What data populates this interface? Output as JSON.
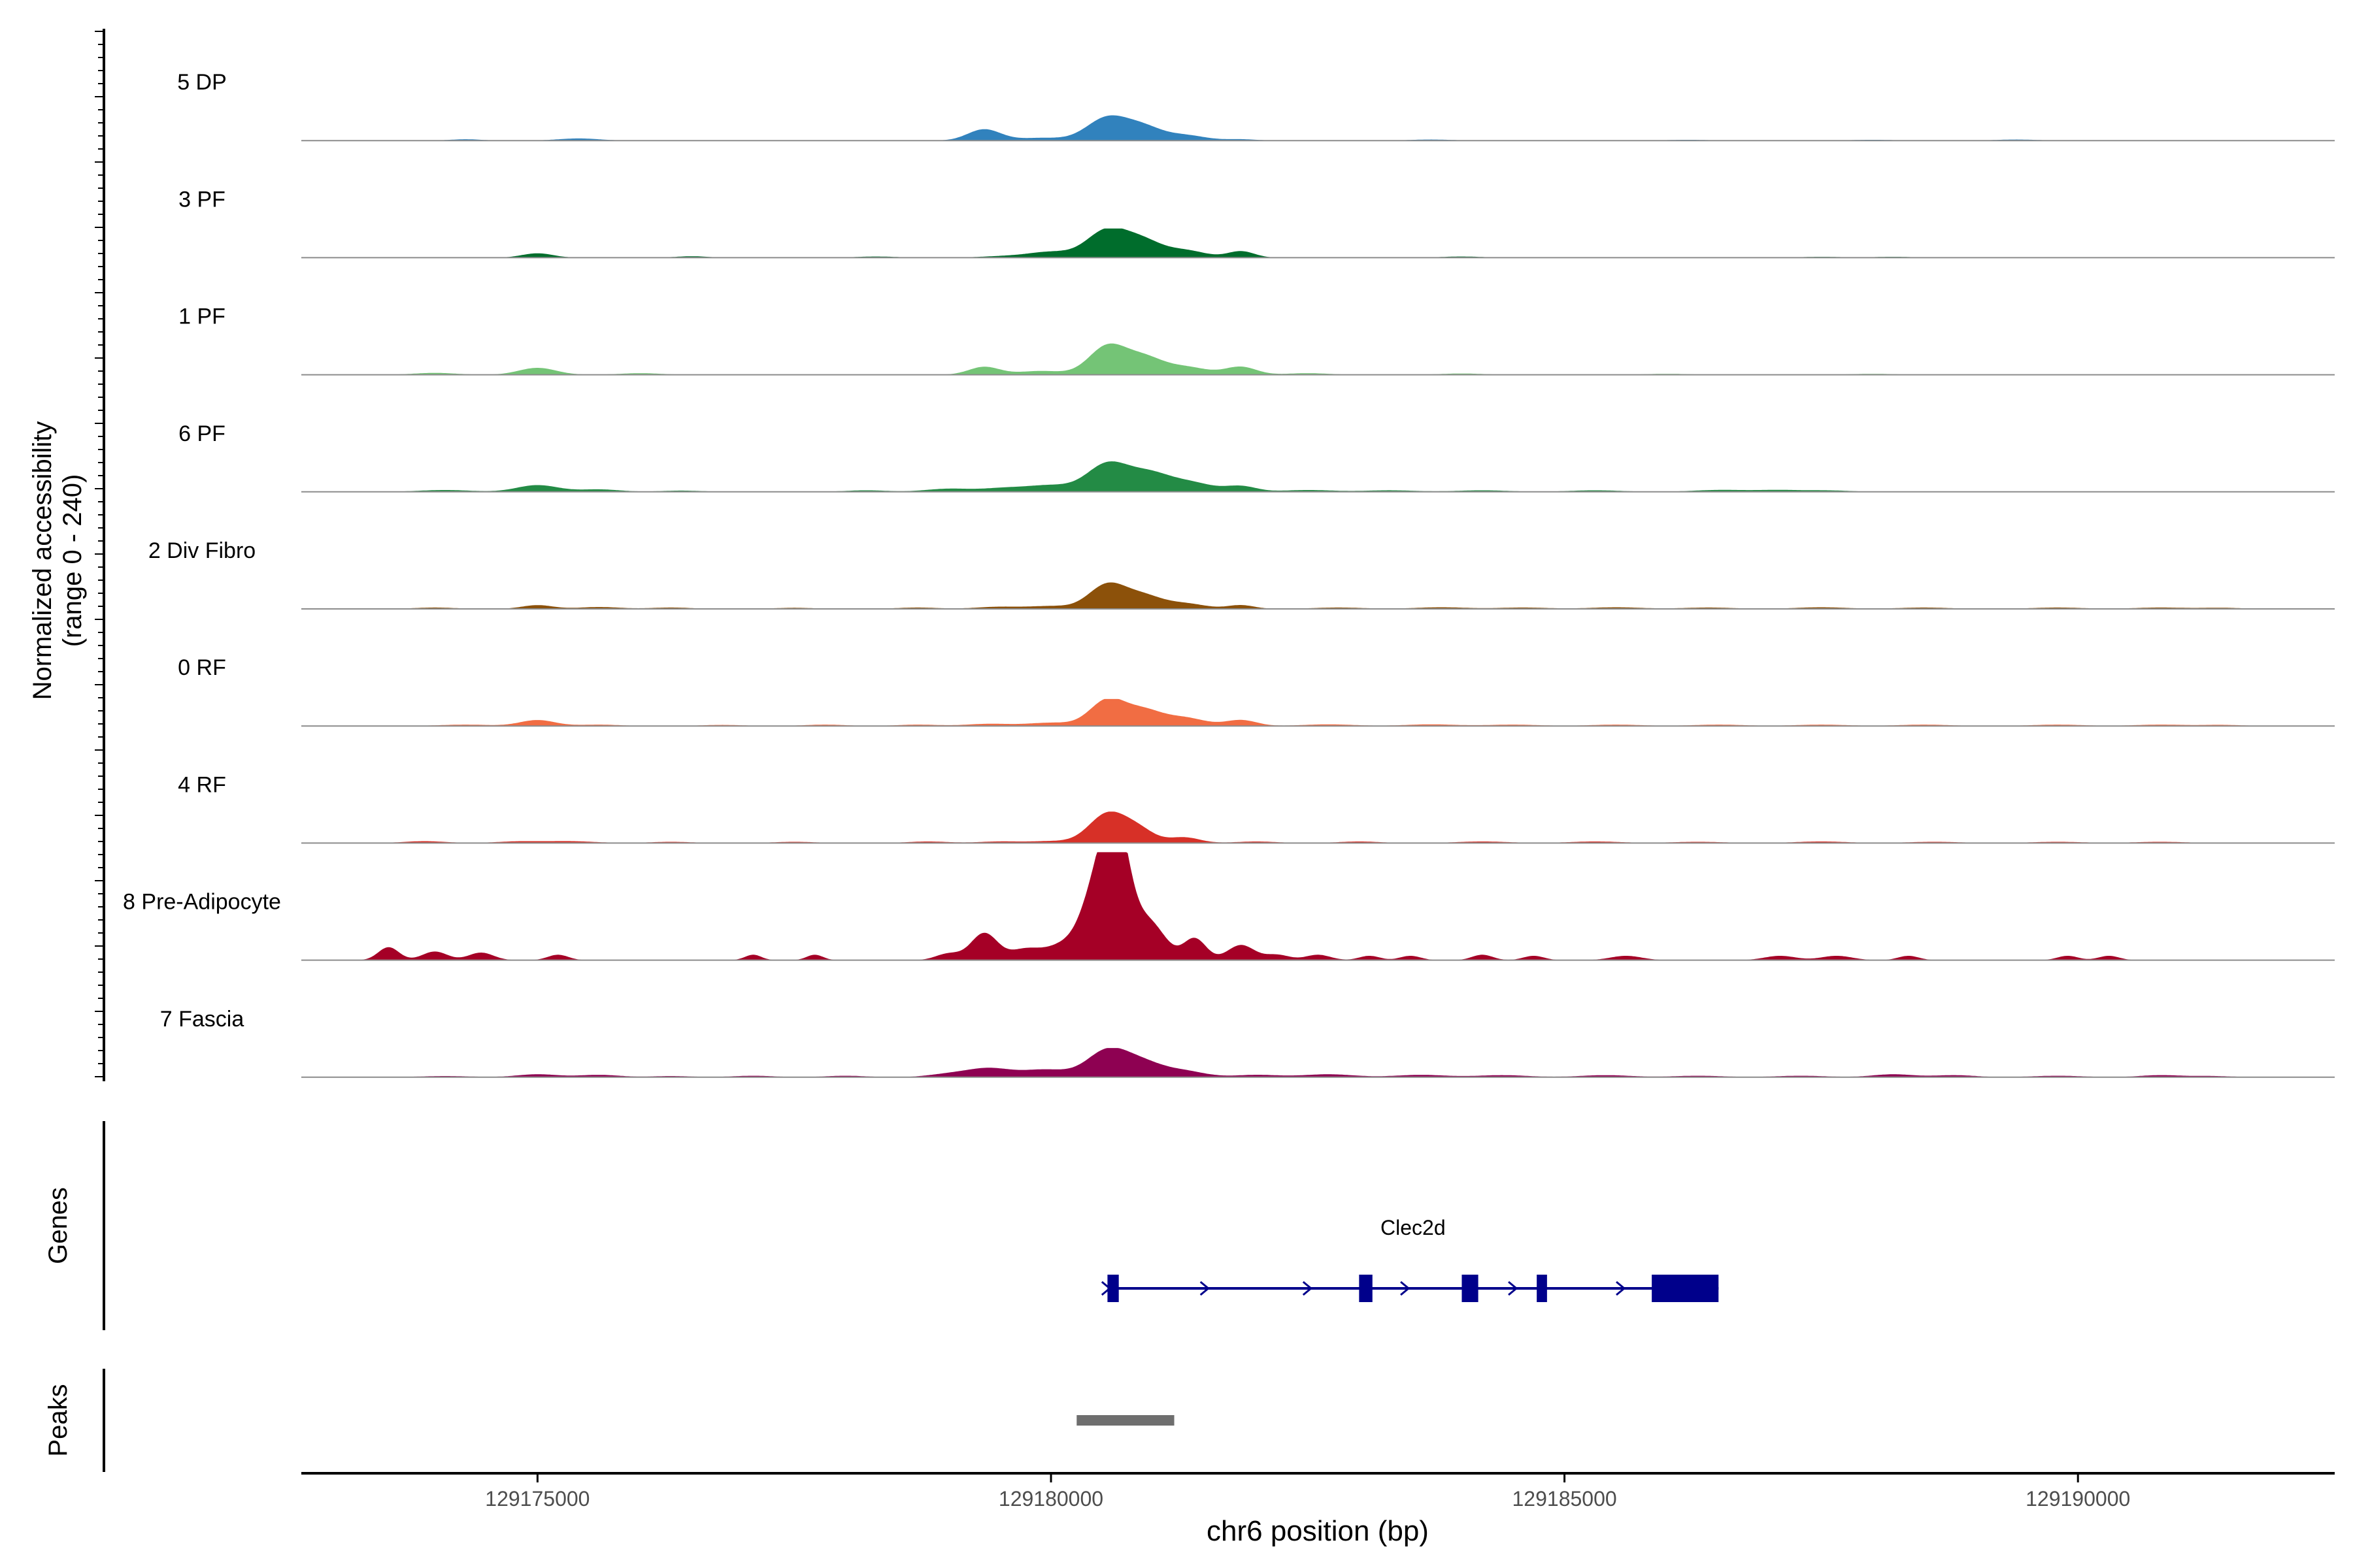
{
  "chart_data": {
    "type": "area",
    "tracks": {
      "ylabel_line1": "Normalized accessibility",
      "ylabel_line2": "(range 0 - 240)",
      "ylim": [
        0,
        240
      ],
      "x_range": [
        129172700,
        129192500
      ],
      "series": [
        {
          "name": "5 DP",
          "color": "#3182bd",
          "max": 60,
          "peaks": [
            [
              129174300,
              0.05,
              150
            ],
            [
              129175400,
              0.08,
              200
            ],
            [
              129179350,
              0.42,
              160
            ],
            [
              129179900,
              0.1,
              220
            ],
            [
              129180550,
              0.85,
              200
            ],
            [
              129180900,
              0.45,
              180
            ],
            [
              129181300,
              0.2,
              200
            ],
            [
              129181850,
              0.05,
              150
            ],
            [
              129183700,
              0.04,
              200
            ],
            [
              129186200,
              0.03,
              200
            ],
            [
              129188000,
              0.03,
              200
            ],
            [
              129189400,
              0.04,
              200
            ]
          ]
        },
        {
          "name": "3 PF",
          "color": "#006d2c",
          "max": 65,
          "peaks": [
            [
              129175000,
              0.15,
              150
            ],
            [
              129176500,
              0.05,
              150
            ],
            [
              129178300,
              0.04,
              200
            ],
            [
              129179600,
              0.06,
              250
            ],
            [
              129180000,
              0.18,
              200
            ],
            [
              129180550,
              0.95,
              200
            ],
            [
              129180900,
              0.5,
              180
            ],
            [
              129181300,
              0.25,
              200
            ],
            [
              129181850,
              0.22,
              130
            ],
            [
              129184000,
              0.04,
              200
            ],
            [
              129187500,
              0.03,
              200
            ],
            [
              129188200,
              0.03,
              200
            ]
          ]
        },
        {
          "name": "1 PF",
          "color": "#74c476",
          "max": 70,
          "peaks": [
            [
              129174000,
              0.06,
              200
            ],
            [
              129175000,
              0.22,
              180
            ],
            [
              129176000,
              0.05,
              200
            ],
            [
              129179350,
              0.25,
              150
            ],
            [
              129179900,
              0.12,
              220
            ],
            [
              129180550,
              0.9,
              180
            ],
            [
              129180900,
              0.5,
              180
            ],
            [
              129181300,
              0.25,
              220
            ],
            [
              129181850,
              0.25,
              150
            ],
            [
              129182500,
              0.05,
              200
            ],
            [
              129184000,
              0.04,
              200
            ],
            [
              129186000,
              0.03,
              200
            ],
            [
              129188000,
              0.03,
              200
            ]
          ]
        },
        {
          "name": "6 PF",
          "color": "#238b45",
          "max": 68,
          "peaks": [
            [
              129174100,
              0.06,
              250
            ],
            [
              129175000,
              0.22,
              200
            ],
            [
              129175600,
              0.08,
              200
            ],
            [
              129176400,
              0.04,
              200
            ],
            [
              129178200,
              0.05,
              200
            ],
            [
              129179000,
              0.1,
              220
            ],
            [
              129179550,
              0.12,
              220
            ],
            [
              129180000,
              0.2,
              220
            ],
            [
              129180550,
              0.9,
              200
            ],
            [
              129180950,
              0.55,
              200
            ],
            [
              129181350,
              0.3,
              220
            ],
            [
              129181850,
              0.18,
              150
            ],
            [
              129182500,
              0.06,
              250
            ],
            [
              129183300,
              0.05,
              250
            ],
            [
              129184200,
              0.05,
              250
            ],
            [
              129185300,
              0.05,
              250
            ],
            [
              129186500,
              0.06,
              250
            ],
            [
              129187100,
              0.06,
              250
            ],
            [
              129187600,
              0.04,
              200
            ]
          ]
        },
        {
          "name": "2 Div Fibro",
          "color": "#8c510a",
          "max": 60,
          "peaks": [
            [
              129174000,
              0.05,
              200
            ],
            [
              129175000,
              0.14,
              150
            ],
            [
              129175600,
              0.07,
              200
            ],
            [
              129176300,
              0.05,
              200
            ],
            [
              129177500,
              0.04,
              200
            ],
            [
              129178700,
              0.05,
              200
            ],
            [
              129179500,
              0.08,
              220
            ],
            [
              129180000,
              0.1,
              200
            ],
            [
              129180550,
              0.9,
              180
            ],
            [
              129180900,
              0.45,
              180
            ],
            [
              129181300,
              0.2,
              200
            ],
            [
              129181850,
              0.14,
              130
            ],
            [
              129182800,
              0.05,
              250
            ],
            [
              129183800,
              0.06,
              250
            ],
            [
              129184600,
              0.05,
              250
            ],
            [
              129185500,
              0.06,
              250
            ],
            [
              129186400,
              0.05,
              250
            ],
            [
              129187500,
              0.06,
              250
            ],
            [
              129188500,
              0.05,
              250
            ],
            [
              129189800,
              0.05,
              250
            ],
            [
              129190800,
              0.05,
              250
            ],
            [
              129191400,
              0.04,
              200
            ]
          ]
        },
        {
          "name": "0 RF",
          "color": "#f16d43",
          "max": 60,
          "peaks": [
            [
              129174300,
              0.05,
              250
            ],
            [
              129175000,
              0.22,
              170
            ],
            [
              129175600,
              0.05,
              200
            ],
            [
              129176800,
              0.04,
              200
            ],
            [
              129177800,
              0.05,
              200
            ],
            [
              129178700,
              0.05,
              200
            ],
            [
              129179400,
              0.08,
              220
            ],
            [
              129180000,
              0.12,
              220
            ],
            [
              129180550,
              0.95,
              170
            ],
            [
              129180900,
              0.55,
              180
            ],
            [
              129181300,
              0.3,
              200
            ],
            [
              129181850,
              0.22,
              150
            ],
            [
              129182700,
              0.06,
              250
            ],
            [
              129183700,
              0.06,
              250
            ],
            [
              129184500,
              0.05,
              250
            ],
            [
              129185500,
              0.05,
              250
            ],
            [
              129186500,
              0.05,
              250
            ],
            [
              129187500,
              0.05,
              250
            ],
            [
              129188500,
              0.05,
              250
            ],
            [
              129189800,
              0.05,
              250
            ],
            [
              129190800,
              0.05,
              250
            ],
            [
              129191400,
              0.04,
              200
            ]
          ]
        },
        {
          "name": "4 RF",
          "color": "#d73027",
          "max": 70,
          "peaks": [
            [
              129173900,
              0.06,
              200
            ],
            [
              129174800,
              0.05,
              200
            ],
            [
              129175300,
              0.06,
              250
            ],
            [
              129176300,
              0.04,
              200
            ],
            [
              129177500,
              0.04,
              200
            ],
            [
              129178800,
              0.05,
              200
            ],
            [
              129179500,
              0.05,
              200
            ],
            [
              129180000,
              0.06,
              200
            ],
            [
              129180550,
              0.92,
              180
            ],
            [
              129180850,
              0.4,
              160
            ],
            [
              129181300,
              0.18,
              150
            ],
            [
              129182000,
              0.05,
              200
            ],
            [
              129183000,
              0.05,
              200
            ],
            [
              129184200,
              0.05,
              250
            ],
            [
              129185300,
              0.05,
              250
            ],
            [
              129186300,
              0.04,
              250
            ],
            [
              129187500,
              0.05,
              250
            ],
            [
              129188600,
              0.04,
              250
            ],
            [
              129189800,
              0.04,
              250
            ],
            [
              129190800,
              0.04,
              250
            ]
          ]
        },
        {
          "name": "8 Pre-Adipocyte",
          "color": "#a50026",
          "max": 240,
          "peaks": [
            [
              129173550,
              0.12,
              100
            ],
            [
              129174000,
              0.08,
              120
            ],
            [
              129174450,
              0.07,
              120
            ],
            [
              129175200,
              0.05,
              100
            ],
            [
              129177100,
              0.05,
              80
            ],
            [
              129177700,
              0.05,
              80
            ],
            [
              129179000,
              0.06,
              120
            ],
            [
              129179350,
              0.25,
              130
            ],
            [
              129179750,
              0.1,
              150
            ],
            [
              129180100,
              0.12,
              160
            ],
            [
              129180500,
              0.85,
              170
            ],
            [
              129180650,
              0.75,
              120
            ],
            [
              129180950,
              0.35,
              160
            ],
            [
              129181400,
              0.2,
              110
            ],
            [
              129181850,
              0.14,
              130
            ],
            [
              129182200,
              0.05,
              120
            ],
            [
              129182600,
              0.05,
              120
            ],
            [
              129183100,
              0.04,
              100
            ],
            [
              129183500,
              0.04,
              100
            ],
            [
              129184200,
              0.05,
              100
            ],
            [
              129184700,
              0.04,
              100
            ],
            [
              129185600,
              0.04,
              150
            ],
            [
              129187100,
              0.04,
              150
            ],
            [
              129187650,
              0.04,
              150
            ],
            [
              129188350,
              0.04,
              100
            ],
            [
              129189900,
              0.04,
              100
            ],
            [
              129190300,
              0.04,
              100
            ]
          ]
        },
        {
          "name": "7 Fascia",
          "color": "#8e0152",
          "max": 65,
          "peaks": [
            [
              129174100,
              0.04,
              250
            ],
            [
              129175000,
              0.1,
              200
            ],
            [
              129175600,
              0.08,
              200
            ],
            [
              129176300,
              0.04,
              200
            ],
            [
              129177100,
              0.05,
              200
            ],
            [
              129178000,
              0.05,
              200
            ],
            [
              129179000,
              0.1,
              200
            ],
            [
              129179400,
              0.3,
              220
            ],
            [
              129179950,
              0.25,
              220
            ],
            [
              129180550,
              0.9,
              200
            ],
            [
              129180900,
              0.45,
              200
            ],
            [
              129181300,
              0.2,
              200
            ],
            [
              129182000,
              0.08,
              220
            ],
            [
              129182700,
              0.1,
              250
            ],
            [
              129183600,
              0.08,
              250
            ],
            [
              129184400,
              0.07,
              250
            ],
            [
              129185400,
              0.07,
              250
            ],
            [
              129186300,
              0.05,
              250
            ],
            [
              129187300,
              0.05,
              250
            ],
            [
              129188200,
              0.1,
              200
            ],
            [
              129188800,
              0.07,
              200
            ],
            [
              129189800,
              0.05,
              250
            ],
            [
              129190800,
              0.07,
              200
            ],
            [
              129191300,
              0.04,
              200
            ]
          ]
        }
      ]
    },
    "genes": {
      "ylabel": "Genes",
      "color": "#00008b",
      "gene_name": "Clec2d",
      "tx_start": 129180550,
      "tx_end": 129186500,
      "exons": [
        [
          129180550,
          129180660
        ],
        [
          129183000,
          129183130
        ],
        [
          129184000,
          129184160
        ],
        [
          129184730,
          129184830
        ],
        [
          129185850,
          129186500
        ]
      ],
      "arrows": [
        129180540,
        129181500,
        129182500,
        129183450,
        129184500,
        129185550
      ]
    },
    "peaks_track": {
      "ylabel": "Peaks",
      "color": "#6e6e6e",
      "regions": [
        [
          129180250,
          129181200
        ]
      ]
    },
    "x_axis": {
      "xlabel": "chr6 position (bp)",
      "ticks": [
        129175000,
        129180000,
        129185000,
        129190000
      ],
      "tick_labels": [
        "129175000",
        "129180000",
        "129185000",
        "129190000"
      ]
    },
    "grid": false,
    "legend": "none"
  }
}
